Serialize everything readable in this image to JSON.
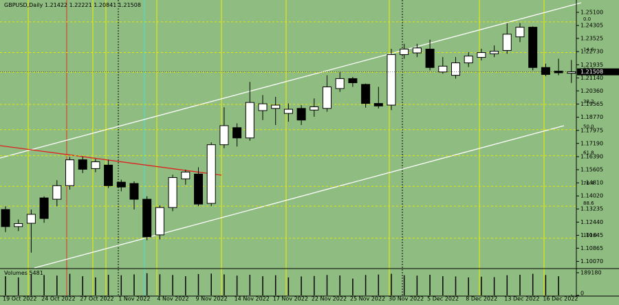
{
  "chart_data": {
    "type": "candlestick",
    "title": "GBPUSD,Daily",
    "categories": [
      "19 Oct 2022",
      null,
      null,
      "24 Oct 2022",
      null,
      null,
      "27 Oct 2022",
      null,
      null,
      "1 Nov 2022",
      null,
      null,
      "4 Nov 2022",
      null,
      null,
      "9 Nov 2022",
      null,
      null,
      "14 Nov 2022",
      null,
      null,
      "17 Nov 2022",
      null,
      null,
      "22 Nov 2022",
      null,
      null,
      "25 Nov 2022",
      null,
      null,
      "30 Nov 2022",
      null,
      null,
      "5 Dec 2022",
      null,
      null,
      "8 Dec 2022",
      null,
      null,
      "13 Dec 2022",
      null,
      null,
      "16 Dec 2022",
      null,
      null
    ],
    "open": [
      1.132,
      1.1217,
      1.1237,
      1.139,
      1.1382,
      1.1464,
      1.162,
      1.1567,
      1.1588,
      1.1485,
      1.1477,
      1.1382,
      1.1167,
      1.1332,
      1.1505,
      1.1534,
      1.1357,
      1.1711,
      1.1814,
      1.1752,
      1.1917,
      1.193,
      1.19,
      1.193,
      1.192,
      1.193,
      1.205,
      1.211,
      1.2075,
      1.196,
      1.195,
      1.2255,
      1.2265,
      1.2288,
      1.215,
      1.213,
      1.2205,
      1.2238,
      1.226,
      1.228,
      1.2362,
      1.242,
      1.2177,
      1.2155,
      1.21422
    ],
    "high": [
      1.134,
      1.126,
      1.132,
      1.14,
      1.1497,
      1.1637,
      1.164,
      1.1625,
      1.162,
      1.15,
      1.149,
      1.14,
      1.1345,
      1.153,
      1.156,
      1.1575,
      1.1725,
      1.1937,
      1.184,
      1.209,
      1.201,
      1.2,
      1.196,
      1.195,
      1.199,
      1.213,
      1.215,
      1.212,
      1.208,
      1.206,
      1.229,
      1.232,
      1.232,
      1.2345,
      1.224,
      1.224,
      1.227,
      1.229,
      1.231,
      1.2445,
      1.2445,
      1.2425,
      1.22,
      1.223,
      1.22221
    ],
    "low": [
      1.1184,
      1.119,
      1.106,
      1.124,
      1.134,
      1.144,
      1.154,
      1.1545,
      1.145,
      1.143,
      1.132,
      1.1135,
      1.114,
      1.131,
      1.147,
      1.134,
      1.134,
      1.169,
      1.17,
      1.1735,
      1.186,
      1.183,
      1.185,
      1.183,
      1.188,
      1.191,
      1.203,
      1.206,
      1.1935,
      1.193,
      1.192,
      1.223,
      1.224,
      1.216,
      1.214,
      1.211,
      1.218,
      1.222,
      1.224,
      1.226,
      1.233,
      1.216,
      1.2125,
      1.213,
      1.20841
    ],
    "close": [
      1.1217,
      1.1235,
      1.1291,
      1.1266,
      1.1464,
      1.162,
      1.1563,
      1.1608,
      1.1464,
      1.1456,
      1.1382,
      1.1155,
      1.1332,
      1.1513,
      1.1546,
      1.1353,
      1.1711,
      1.1826,
      1.1752,
      1.1966,
      1.1958,
      1.195,
      1.1925,
      1.186,
      1.194,
      1.206,
      1.211,
      1.2085,
      1.196,
      1.1945,
      1.2255,
      1.2288,
      1.2295,
      1.2177,
      1.2185,
      1.2205,
      1.2246,
      1.2267,
      1.2275,
      1.2378,
      1.242,
      1.2177,
      1.2135,
      1.2145,
      1.21508
    ],
    "volume_label": "Volumes",
    "volumes": [
      160000,
      150000,
      175000,
      170000,
      165000,
      180000,
      160000,
      150000,
      172000,
      168000,
      175000,
      185000,
      176000,
      170000,
      160000,
      178000,
      182000,
      175000,
      165000,
      172000,
      160000,
      168000,
      150000,
      158000,
      162000,
      170000,
      166000,
      140000,
      170000,
      174000,
      180000,
      168000,
      165000,
      172000,
      160000,
      158000,
      150000,
      156000,
      152000,
      168000,
      172000,
      180000,
      170000,
      160000,
      5481
    ],
    "vlim": [
      0,
      189180
    ],
    "vticks": [
      189180,
      0
    ],
    "ylim": [
      1.0976,
      1.2576
    ],
    "yticks": [
      {
        "value": 1.251,
        "label": "1.25100"
      },
      {
        "value": 1.24305,
        "label": "1.24305"
      },
      {
        "value": 1.23525,
        "label": "1.23525"
      },
      {
        "value": 1.2273,
        "label": "1.22730"
      },
      {
        "value": 1.21935,
        "label": "1.21935"
      },
      {
        "value": 1.2114,
        "label": "1.21140"
      },
      {
        "value": 1.2036,
        "label": "1.20360"
      },
      {
        "value": 1.19565,
        "label": "1.19565"
      },
      {
        "value": 1.1877,
        "label": "1.18770"
      },
      {
        "value": 1.17975,
        "label": "1.17975"
      },
      {
        "value": 1.1719,
        "label": "1.17190"
      },
      {
        "value": 1.1639,
        "label": "1.16390"
      },
      {
        "value": 1.15605,
        "label": "1.15605"
      },
      {
        "value": 1.1481,
        "label": "1.14810"
      },
      {
        "value": 1.1402,
        "label": "1.14020"
      },
      {
        "value": 1.13235,
        "label": "1.13235"
      },
      {
        "value": 1.1244,
        "label": "1.12440"
      },
      {
        "value": 1.11645,
        "label": "1.11645"
      },
      {
        "value": 1.10865,
        "label": "1.10865"
      },
      {
        "value": 1.1007,
        "label": "1.10070"
      }
    ],
    "fib_levels": [
      {
        "label": "0.0",
        "value": 1.2452
      },
      {
        "label": "14.6",
        "value": 1.2267
      },
      {
        "label": "23.6",
        "value": 1.2148
      },
      {
        "label": "38.2",
        "value": 1.1954
      },
      {
        "label": "50.0",
        "value": 1.1802
      },
      {
        "label": "61.8",
        "value": 1.1645
      },
      {
        "label": "76.4",
        "value": 1.146
      },
      {
        "label": "88.6",
        "value": 1.134
      },
      {
        "label": "100.0",
        "value": 1.1147
      }
    ],
    "background": "#8fbc80",
    "up_color": "#ffffff",
    "down_color": "#000000",
    "fib_color": "#e8e800"
  }
}
